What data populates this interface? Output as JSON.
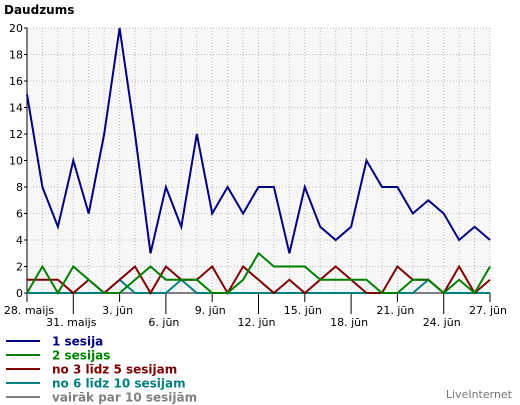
{
  "chart_data": {
    "type": "line",
    "title": "Daudzums",
    "x": [
      "28. maijs",
      "29. maijs",
      "30. maijs",
      "31. maijs",
      "1. jūn",
      "2. jūn",
      "3. jūn",
      "4. jūn",
      "5. jūn",
      "6. jūn",
      "7. jūn",
      "8. jūn",
      "9. jūn",
      "10. jūn",
      "11. jūn",
      "12. jūn",
      "13. jūn",
      "14. jūn",
      "15. jūn",
      "16. jūn",
      "17. jūn",
      "18. jūn",
      "19. jūn",
      "20. jūn",
      "21. jūn",
      "22. jūn",
      "23. jūn",
      "24. jūn",
      "25. jūn",
      "26. jūn",
      "27. jūn"
    ],
    "x_tick_labels": [
      "28. maijs",
      "31. maijs",
      "3. jūn",
      "6. jūn",
      "9. jūn",
      "12. jūn",
      "15. jūn",
      "18. jūn",
      "21. jūn",
      "24. jūn",
      "27. jūn"
    ],
    "ylim": [
      0,
      20
    ],
    "y_ticks": [
      0,
      2,
      4,
      6,
      8,
      10,
      12,
      14,
      16,
      18,
      20
    ],
    "grid": true,
    "legend_position": "bottom-left",
    "series": [
      {
        "name": "1 sesija",
        "color": "#000080",
        "values": [
          15,
          8,
          5,
          10,
          6,
          12,
          20,
          12,
          3,
          8,
          5,
          12,
          6,
          8,
          6,
          8,
          8,
          3,
          8,
          5,
          4,
          5,
          10,
          8,
          8,
          6,
          7,
          6,
          4,
          5,
          4
        ]
      },
      {
        "name": "2 sesijas",
        "color": "#008000",
        "values": [
          0,
          2,
          0,
          2,
          1,
          0,
          0,
          1,
          2,
          1,
          1,
          1,
          0,
          0,
          1,
          3,
          2,
          2,
          2,
          1,
          1,
          1,
          1,
          0,
          0,
          1,
          1,
          0,
          1,
          0,
          2
        ]
      },
      {
        "name": "no 3 līdz 5 sesijam",
        "color": "#800000",
        "values": [
          1,
          1,
          1,
          0,
          1,
          0,
          1,
          2,
          0,
          2,
          1,
          1,
          2,
          0,
          2,
          1,
          0,
          1,
          0,
          1,
          2,
          1,
          0,
          0,
          2,
          1,
          1,
          0,
          2,
          0,
          1
        ]
      },
      {
        "name": "no 6 līdz 10 sesijam",
        "color": "#008080",
        "values": [
          0,
          0,
          0,
          0,
          0,
          0,
          1,
          0,
          0,
          0,
          1,
          0,
          0,
          0,
          0,
          0,
          0,
          0,
          0,
          0,
          0,
          0,
          0,
          0,
          0,
          0,
          1,
          0,
          0,
          0,
          0
        ]
      },
      {
        "name": "vairāk par 10 sesijām",
        "color": "#808080",
        "values": [
          0,
          0,
          0,
          0,
          0,
          0,
          0,
          0,
          0,
          0,
          0,
          0,
          0,
          0,
          0,
          0,
          0,
          0,
          0,
          0,
          0,
          0,
          0,
          0,
          0,
          0,
          0,
          0,
          0,
          0,
          0
        ]
      }
    ]
  },
  "credit": "LiveInternet"
}
